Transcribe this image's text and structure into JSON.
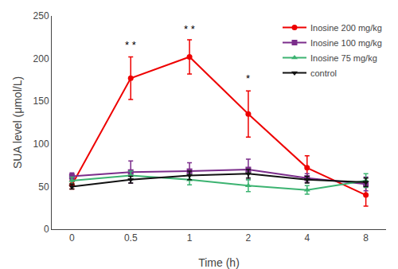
{
  "chart_data": {
    "type": "line",
    "xlabel": "Time (h)",
    "ylabel": "SUA level (μmol/L)",
    "categories": [
      "0",
      "0.5",
      "1",
      "2",
      "4",
      "8"
    ],
    "series": [
      {
        "name": "Inosine 200 mg/kg",
        "color": "#EE0000",
        "marker": "circle",
        "values": [
          52,
          177,
          202,
          135,
          72,
          40
        ],
        "errors": [
          5,
          25,
          20,
          27,
          14,
          13
        ]
      },
      {
        "name": "Inosine 100 mg/kg",
        "color": "#7B2D8B",
        "marker": "square",
        "values": [
          62,
          67,
          68,
          70,
          60,
          53
        ],
        "errors": [
          4,
          13,
          10,
          12,
          5,
          8
        ]
      },
      {
        "name": "Inosine 75 mg/kg",
        "color": "#3CB371",
        "marker": "triangle-up",
        "values": [
          57,
          63,
          58,
          51,
          46,
          57
        ],
        "errors": [
          4,
          5,
          6,
          7,
          5,
          8
        ]
      },
      {
        "name": "control",
        "color": "#111111",
        "marker": "triangle-down",
        "values": [
          50,
          58,
          63,
          65,
          58,
          55
        ],
        "errors": [
          3,
          4,
          5,
          5,
          4,
          5
        ]
      }
    ],
    "annotations": [
      {
        "x": "0.5",
        "y": 207,
        "text": "* *"
      },
      {
        "x": "1",
        "y": 226,
        "text": "* *"
      },
      {
        "x": "2",
        "y": 168,
        "text": "*"
      }
    ],
    "ylim": [
      0,
      250
    ],
    "yticks": [
      0,
      50,
      100,
      150,
      200,
      250
    ],
    "grid": false,
    "legend": "upper right"
  }
}
